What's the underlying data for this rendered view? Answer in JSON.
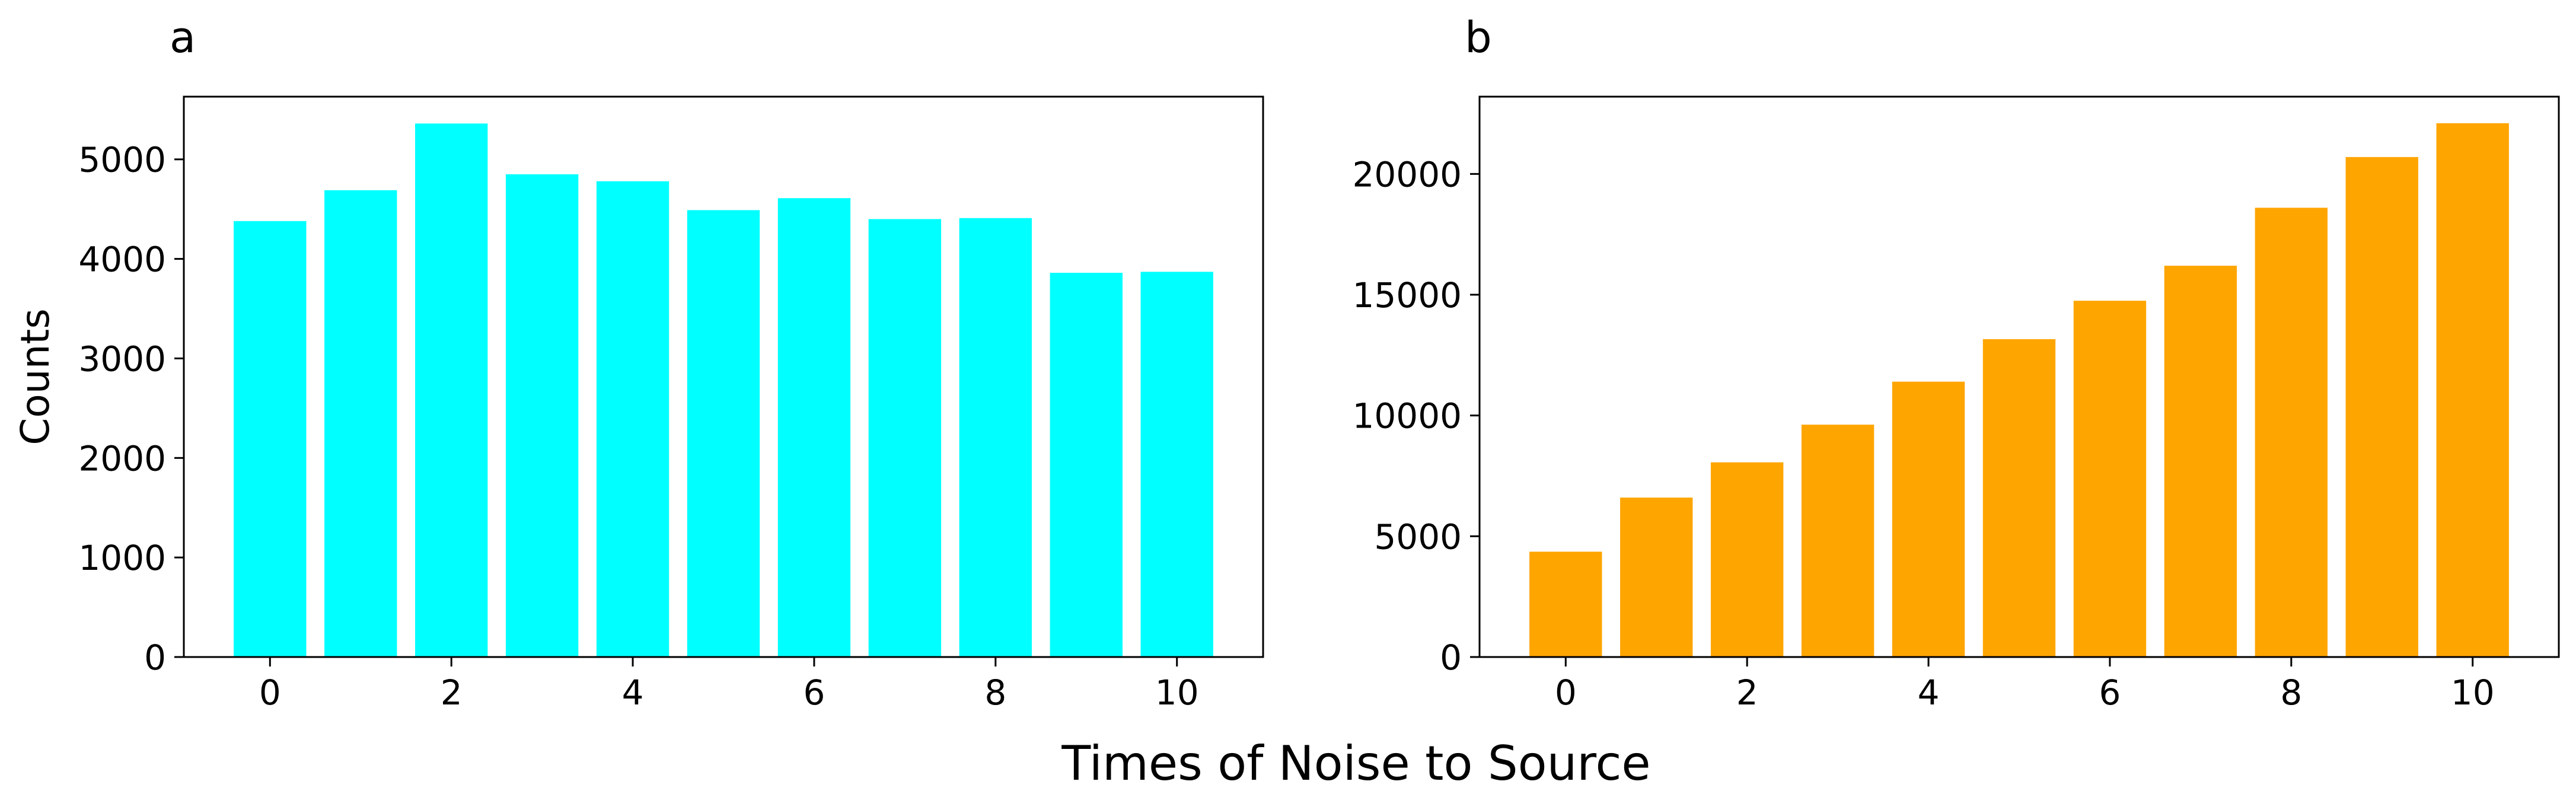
{
  "figure": {
    "xlabel": "Times of Noise to Source"
  },
  "chart_data": [
    {
      "type": "bar",
      "panel_label": "a",
      "title": "",
      "x": [
        0,
        1,
        2,
        3,
        4,
        5,
        6,
        7,
        8,
        9,
        10
      ],
      "values": [
        4380,
        4690,
        5360,
        4850,
        4780,
        4490,
        4610,
        4400,
        4410,
        3860,
        3870
      ],
      "xticks": [
        0,
        2,
        4,
        6,
        8,
        10
      ],
      "yticks": [
        0,
        1000,
        2000,
        3000,
        4000,
        5000
      ],
      "xlim": [
        -0.95,
        10.95
      ],
      "ylim": [
        0,
        5630
      ],
      "xlabel": "",
      "ylabel": "Counts",
      "color": "#00ffff",
      "grid": false
    },
    {
      "type": "bar",
      "panel_label": "b",
      "title": "",
      "x": [
        0,
        1,
        2,
        3,
        4,
        5,
        6,
        7,
        8,
        9,
        10
      ],
      "values": [
        4360,
        6600,
        8060,
        9620,
        11400,
        13160,
        14750,
        16200,
        18600,
        20700,
        22100
      ],
      "xticks": [
        0,
        2,
        4,
        6,
        8,
        10
      ],
      "yticks": [
        0,
        5000,
        10000,
        15000,
        20000
      ],
      "xlim": [
        -0.95,
        10.95
      ],
      "ylim": [
        0,
        23200
      ],
      "xlabel": "",
      "ylabel": "",
      "color": "#ffa500",
      "grid": false
    }
  ]
}
